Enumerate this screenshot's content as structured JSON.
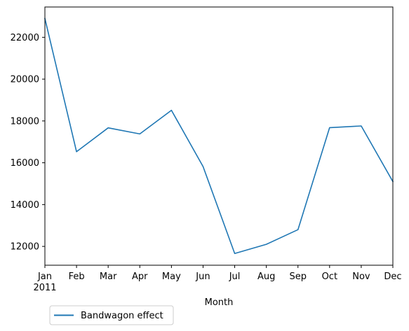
{
  "chart_data": {
    "type": "line",
    "x": [
      "Jan",
      "Feb",
      "Mar",
      "Apr",
      "May",
      "Jun",
      "Jul",
      "Aug",
      "Sep",
      "Oct",
      "Nov",
      "Dec"
    ],
    "x_secondary_label": "2011",
    "series": [
      {
        "name": "Bandwagon effect",
        "color": "#1f77b4",
        "values": [
          22900,
          16530,
          17670,
          17380,
          18510,
          15820,
          11660,
          12100,
          12800,
          17680,
          17760,
          15100
        ]
      }
    ],
    "xlabel": "Month",
    "ylabel": "",
    "ylim": [
      11100,
      23450
    ],
    "yticks": [
      12000,
      14000,
      16000,
      18000,
      20000,
      22000
    ],
    "ytick_labels": [
      "12000",
      "14000",
      "16000",
      "18000",
      "20000",
      "22000"
    ],
    "grid": false,
    "legend_position": "below-left"
  }
}
